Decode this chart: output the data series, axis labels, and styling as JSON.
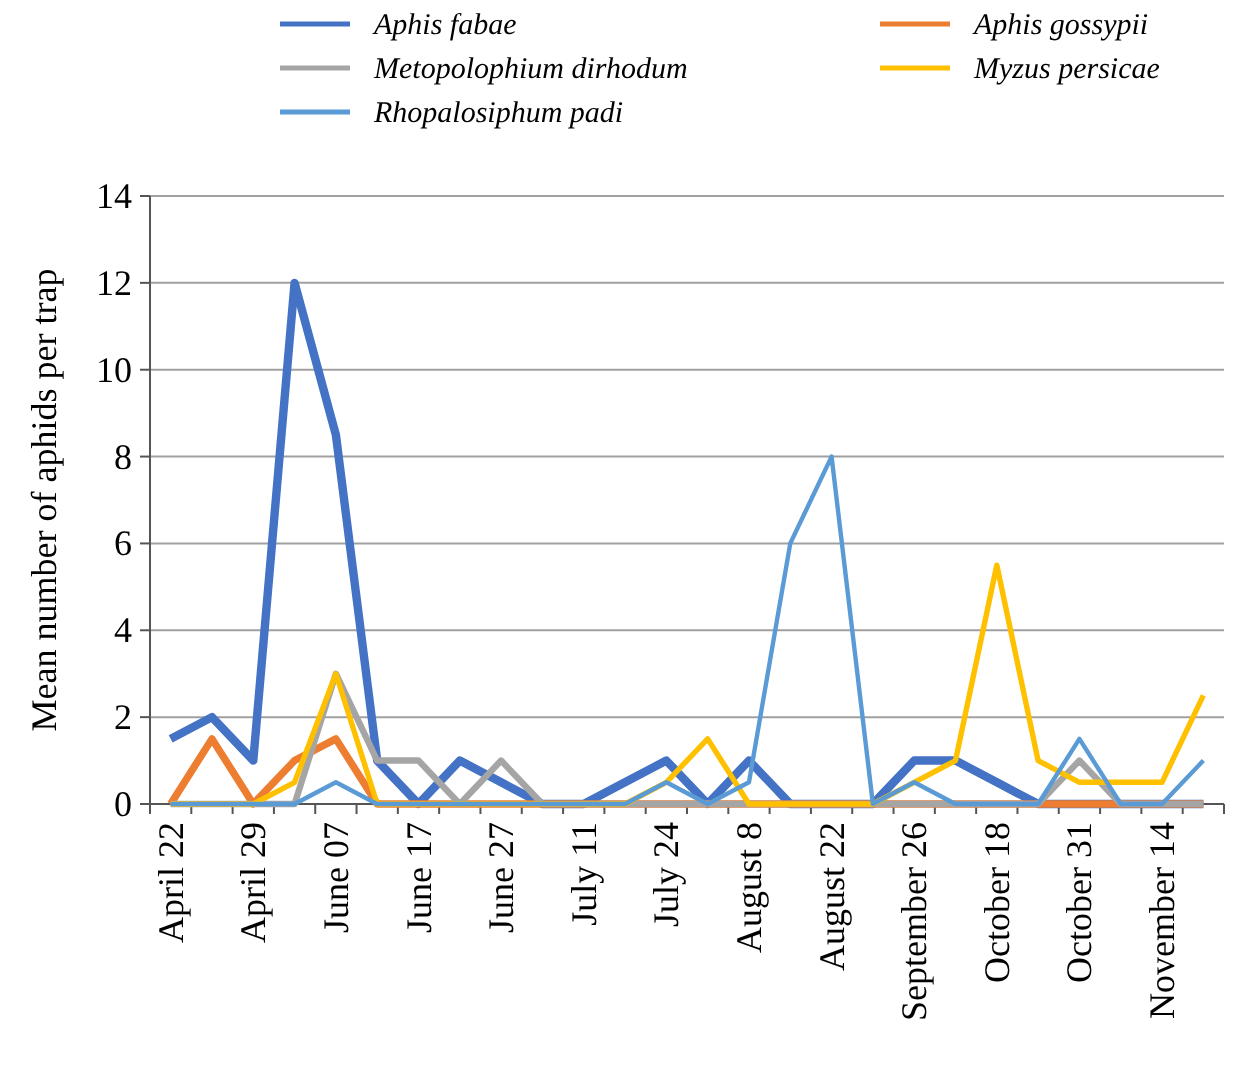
{
  "chart_data": {
    "type": "line",
    "ylabel": "Mean number of aphids per trap",
    "categories": [
      "April 22",
      null,
      "April 29",
      null,
      "June 07",
      null,
      "June 17",
      null,
      "June 27",
      null,
      "July 11",
      null,
      "July 24",
      null,
      "August 8",
      null,
      "August 22",
      null,
      "September 26",
      null,
      "October 18",
      null,
      "October 31",
      null,
      "November 14",
      null
    ],
    "series": [
      {
        "name": "Aphis fabae",
        "color": "#4472c4",
        "values": [
          1.5,
          2,
          1,
          12,
          8.5,
          1,
          0,
          1,
          0.5,
          0,
          0,
          0.5,
          1,
          0,
          1,
          0,
          0,
          0,
          1,
          1,
          0.5,
          0,
          0,
          0,
          0,
          0
        ]
      },
      {
        "name": "Aphis gossypii",
        "color": "#ed7d31",
        "values": [
          0,
          1.5,
          0,
          1,
          1.5,
          0,
          0,
          0,
          0,
          0,
          0,
          0,
          0,
          0,
          0,
          0,
          0,
          0,
          0,
          0,
          0,
          0,
          0,
          0,
          0,
          0
        ]
      },
      {
        "name": "Metopolophium dirhodum",
        "color": "#a5a5a5",
        "values": [
          0,
          0,
          0,
          0,
          3,
          1,
          1,
          0,
          1,
          0,
          0,
          0,
          0,
          0,
          0,
          0,
          0,
          0,
          0,
          0,
          0,
          0,
          1,
          0,
          0,
          0
        ]
      },
      {
        "name": "Myzus persicae",
        "color": "#ffc000",
        "values": [
          0,
          0,
          0,
          0.5,
          3,
          0,
          0,
          0,
          0,
          0,
          0,
          0,
          0.5,
          1.5,
          0,
          0,
          0,
          0,
          0.5,
          1,
          5.5,
          1,
          0.5,
          0.5,
          0.5,
          2.5
        ]
      },
      {
        "name": "Rhopalosiphum padi",
        "color": "#5b9bd5",
        "values": [
          0,
          0,
          0,
          0,
          0.5,
          0,
          0,
          0,
          0,
          0,
          0,
          0,
          0.5,
          0,
          0.5,
          6,
          8,
          0,
          0.5,
          0,
          0,
          0,
          1.5,
          0,
          0,
          1
        ]
      }
    ],
    "ylim": [
      0,
      14
    ],
    "yticks": [
      0,
      2,
      4,
      6,
      8,
      10,
      12,
      14
    ],
    "grid": "y",
    "legend": "top",
    "marker": "none",
    "line_style": "solid"
  }
}
